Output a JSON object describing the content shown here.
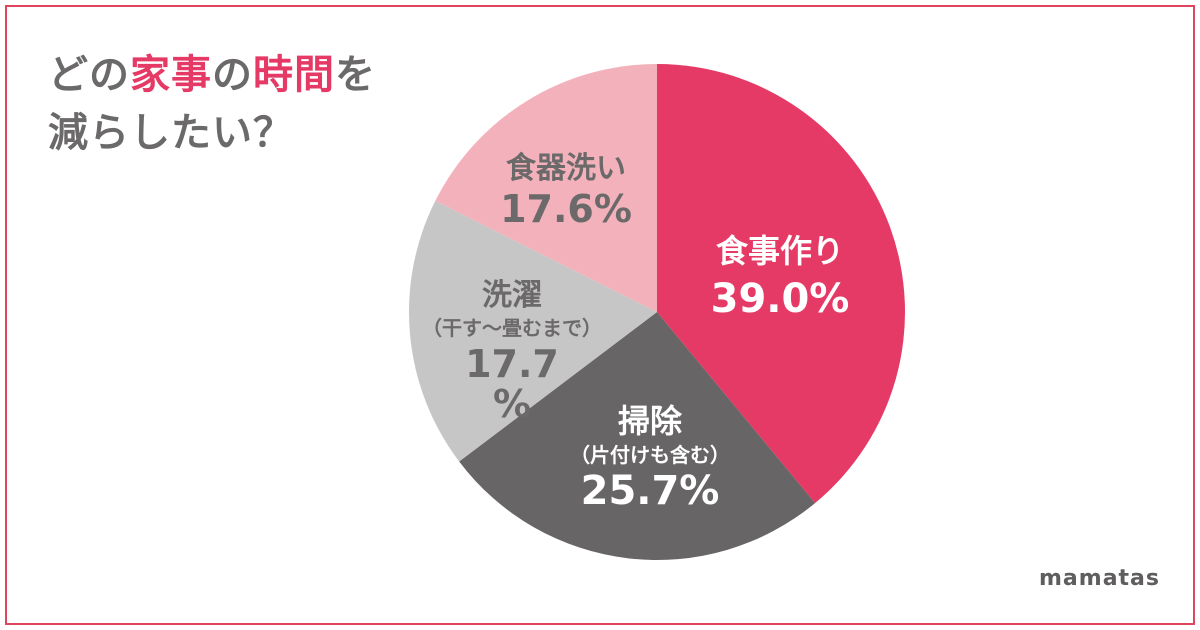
{
  "title": {
    "line1": [
      "どの",
      "家事",
      "の",
      "時間",
      "を"
    ],
    "line2": "減らしたい？"
  },
  "logo": "mamatas",
  "colors": {
    "frame": "#e0455f",
    "title_text": "#6b6969",
    "title_highlight": "#e63a66"
  },
  "chart_data": {
    "type": "pie",
    "start_angle_deg": 0,
    "direction": "clockwise",
    "slices": [
      {
        "label": [
          "食事作り"
        ],
        "value_text": [
          "39.0%"
        ],
        "value": 39.0,
        "color": "#e63a66",
        "text_color": "#ffffff"
      },
      {
        "label": [
          "掃除",
          "（片付けも含む）"
        ],
        "value_text": [
          "25.7%"
        ],
        "value": 25.7,
        "color": "#676566",
        "text_color": "#ffffff"
      },
      {
        "label": [
          "洗濯",
          "（干す〜畳むまで）"
        ],
        "value_text": [
          "17.7",
          "%"
        ],
        "value": 17.7,
        "color": "#c7c6c7",
        "text_color": "#6b6969"
      },
      {
        "label": [
          "食器洗い"
        ],
        "value_text": [
          "17.6%"
        ],
        "value": 17.6,
        "color": "#f3b2bb",
        "text_color": "#6b6969"
      }
    ]
  }
}
